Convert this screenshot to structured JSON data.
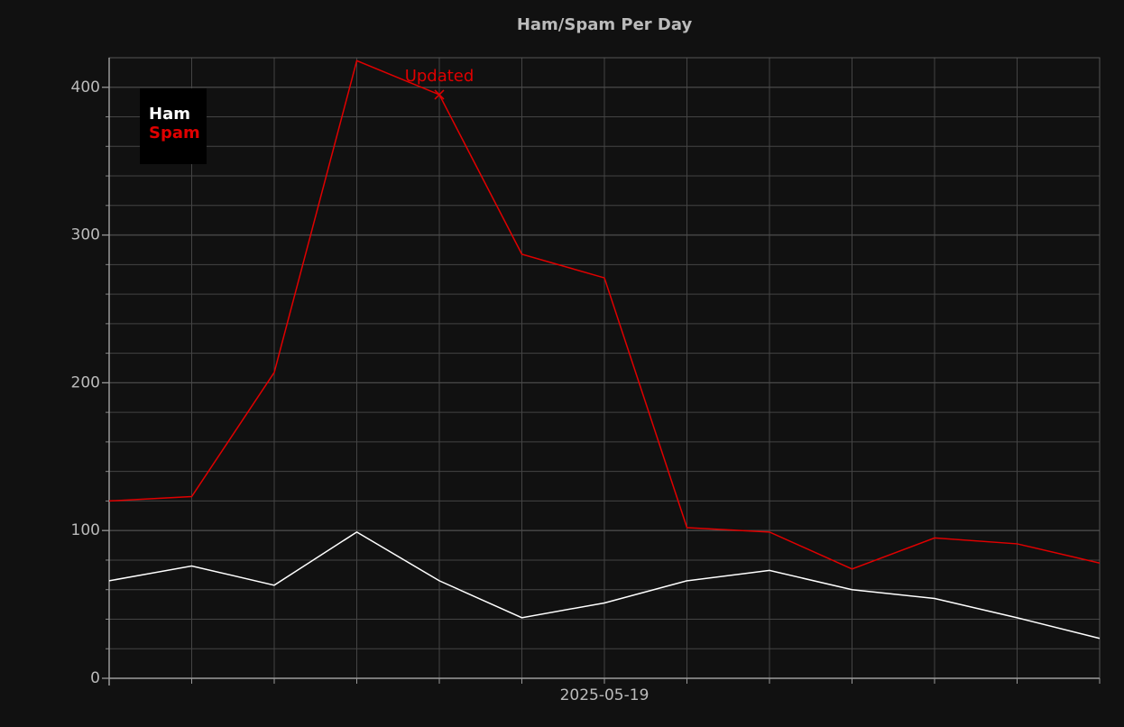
{
  "chart_data": {
    "type": "line",
    "title": "Ham/Spam Per Day",
    "categories": [
      null,
      null,
      null,
      null,
      null,
      null,
      "2025-05-19",
      null,
      null,
      null,
      null,
      null,
      null
    ],
    "series": [
      {
        "name": "Ham",
        "color": "#ffffff",
        "values": [
          66,
          76,
          63,
          99,
          66,
          41,
          51,
          66,
          73,
          60,
          54,
          41,
          27
        ]
      },
      {
        "name": "Spam",
        "color": "#e00000",
        "values": [
          120,
          123,
          207,
          418,
          395,
          287,
          271,
          102,
          99,
          74,
          95,
          91,
          78
        ]
      }
    ],
    "ylim": [
      0,
      420
    ],
    "yticks": [
      0,
      100,
      200,
      300,
      400
    ],
    "minor_yticks": [
      20,
      40,
      60,
      80,
      120,
      140,
      160,
      180,
      220,
      240,
      260,
      280,
      320,
      340,
      360,
      380
    ],
    "grid": true,
    "legend": "upper left",
    "annotations": [
      {
        "text": "Updated",
        "index": 4,
        "value": 395,
        "color": "#e00000"
      }
    ]
  }
}
